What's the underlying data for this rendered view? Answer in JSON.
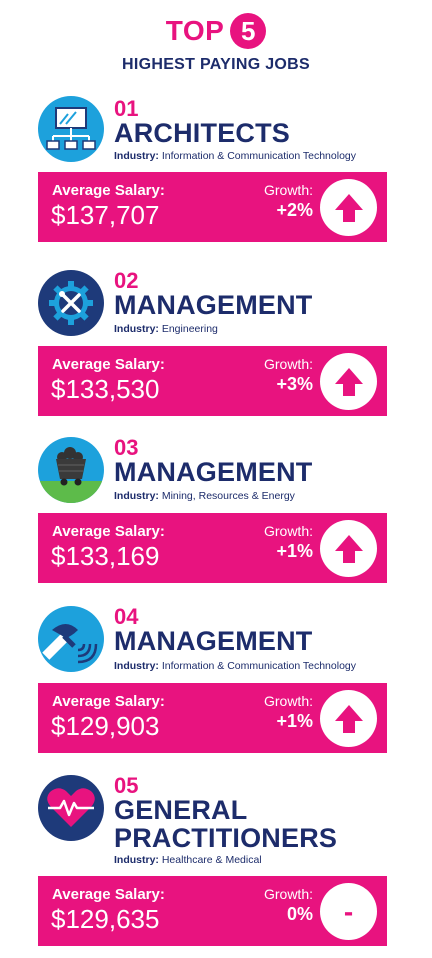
{
  "header": {
    "top": "TOP",
    "number": "5",
    "subtitle": "HIGHEST PAYING JOBS"
  },
  "labels": {
    "industry": "Industry:",
    "average_salary": "Average Salary:",
    "growth": "Growth:"
  },
  "colors": {
    "accent": "#e8137f",
    "navy": "#1d2c6b",
    "icon_blue": "#1da1dc",
    "icon_dark": "#1e3a7a",
    "icon_pink": "#e8137f"
  },
  "jobs": [
    {
      "rank": "01",
      "title": "ARCHITECTS",
      "industry": "Information & Communication Technology",
      "salary": "$137,707",
      "growth": "+2%",
      "trend": "up",
      "icon": "network-monitor-icon"
    },
    {
      "rank": "02",
      "title": "MANAGEMENT",
      "industry": "Engineering",
      "salary": "$133,530",
      "growth": "+3%",
      "trend": "up",
      "icon": "gear-tools-icon"
    },
    {
      "rank": "03",
      "title": "MANAGEMENT",
      "industry": "Mining, Resources & Energy",
      "salary": "$133,169",
      "growth": "+1%",
      "trend": "up",
      "icon": "mine-cart-icon"
    },
    {
      "rank": "04",
      "title": "MANAGEMENT",
      "industry": "Information & Communication Technology",
      "salary": "$129,903",
      "growth": "+1%",
      "trend": "up",
      "icon": "satellite-icon"
    },
    {
      "rank": "05",
      "title": "GENERAL",
      "title_line2": "PRACTITIONERS",
      "industry": "Healthcare & Medical",
      "salary": "$129,635",
      "growth": "0%",
      "trend": "flat",
      "growth_symbol": "-",
      "icon": "heart-pulse-icon"
    }
  ]
}
